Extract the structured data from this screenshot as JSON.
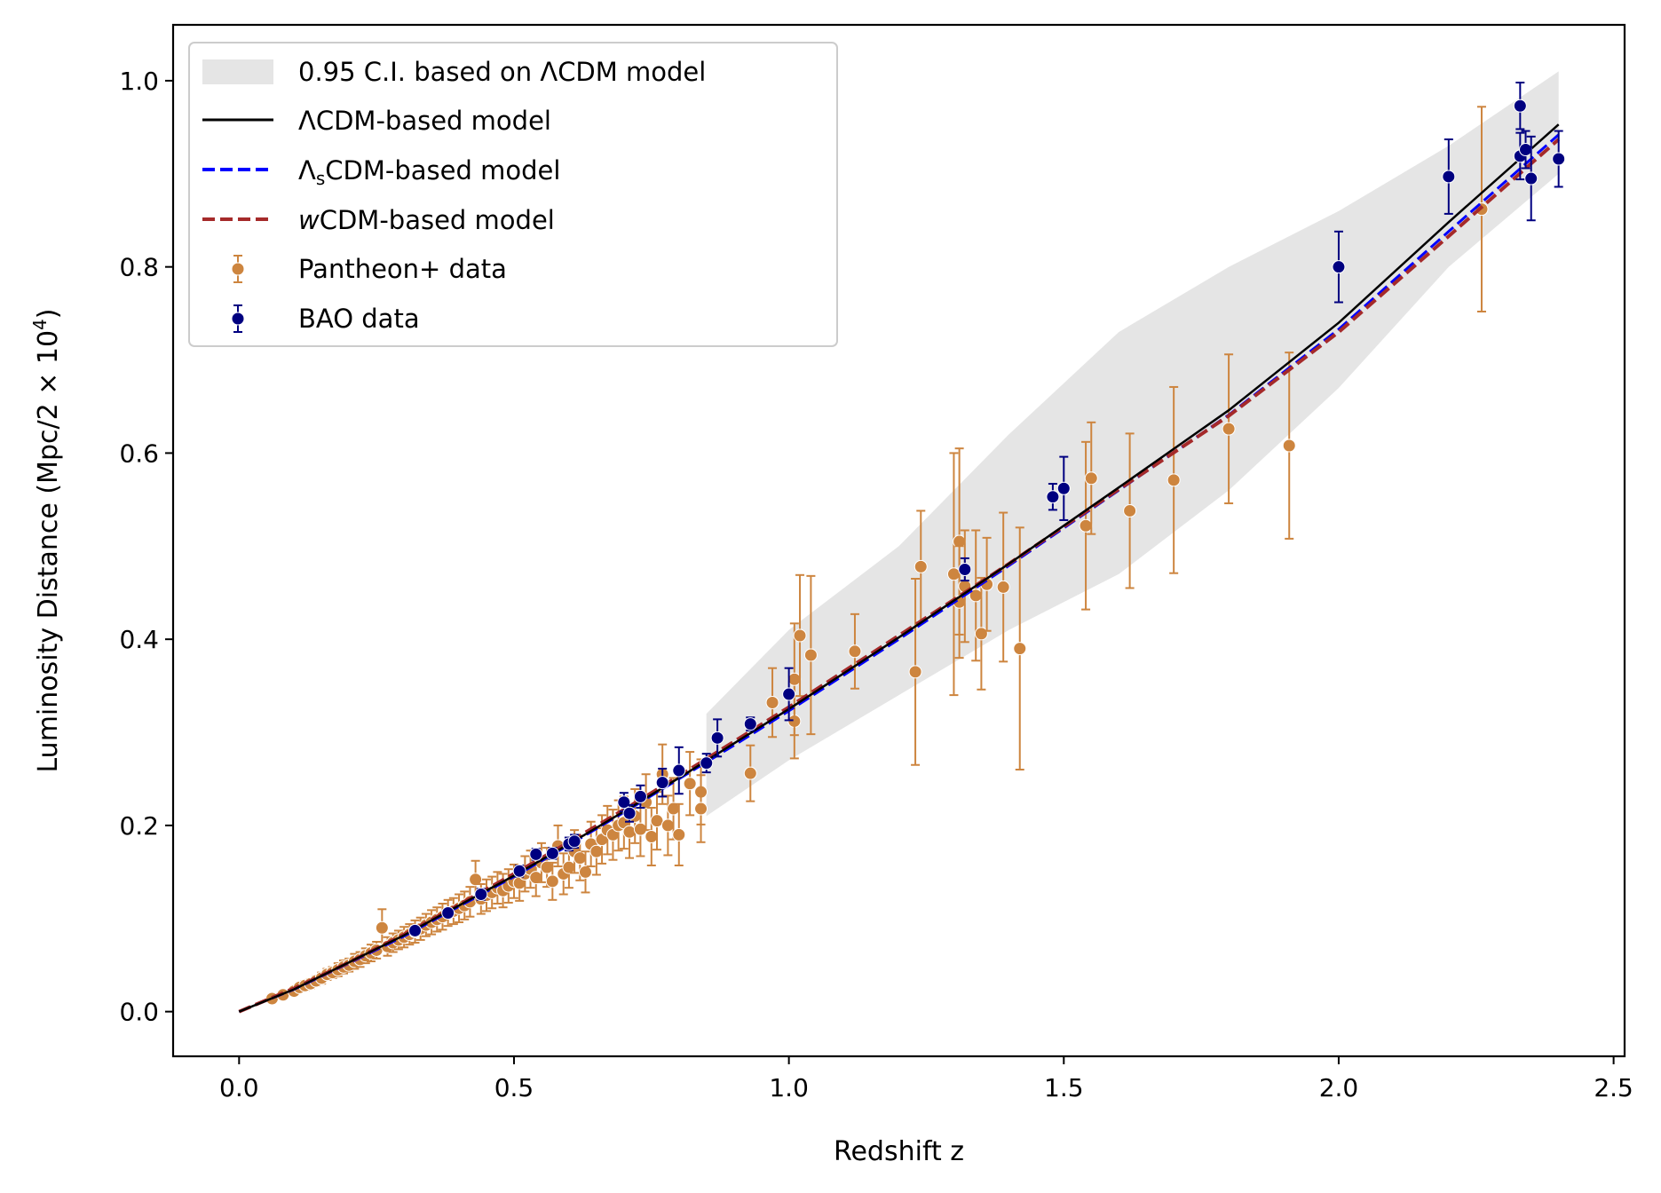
{
  "chart_data": {
    "type": "scatter",
    "xlabel": "Redshift z",
    "ylabel_main": "Luminosity Distance (Mpc/2 × 10",
    "ylabel_sup": "4",
    "ylabel_end": ")",
    "xlim": [
      -0.12,
      2.52
    ],
    "ylim": [
      -0.048,
      1.06
    ],
    "xticks": [
      0.0,
      0.5,
      1.0,
      1.5,
      2.0,
      2.5
    ],
    "xtick_labels": [
      "0.0",
      "0.5",
      "1.0",
      "1.5",
      "2.0",
      "2.5"
    ],
    "yticks": [
      0.0,
      0.2,
      0.4,
      0.6,
      0.8,
      1.0
    ],
    "ytick_labels": [
      "0.0",
      "0.2",
      "0.4",
      "0.6",
      "0.8",
      "1.0"
    ],
    "colors": {
      "ci_band": "#e5e5e5",
      "lcdm": "#000000",
      "lscdm": "#0000ff",
      "wcdm": "#a52a2a",
      "pantheon": "#cd853f",
      "bao": "#000080"
    },
    "legend": {
      "placement": "upper-left",
      "entries": [
        {
          "id": "ci",
          "pre": "0.95 C.I. based on ",
          "sym": "Λ",
          "post": "CDM model"
        },
        {
          "id": "lcdm",
          "pre": "",
          "sym": "Λ",
          "post": "CDM-based model"
        },
        {
          "id": "lscdm",
          "pre": "",
          "sym": "Λ",
          "sub": "s",
          "post": "CDM-based model"
        },
        {
          "id": "wcdm",
          "pre": "",
          "sym": "w",
          "post": "CDM-based model"
        },
        {
          "id": "pantheon",
          "pre": "Pantheon+ data"
        },
        {
          "id": "bao",
          "pre": "BAO data"
        }
      ]
    },
    "ci_band": {
      "x": [
        0.85,
        1.0,
        1.2,
        1.4,
        1.6,
        1.8,
        2.0,
        2.2,
        2.4
      ],
      "lower": [
        0.21,
        0.27,
        0.34,
        0.41,
        0.47,
        0.56,
        0.67,
        0.8,
        0.9
      ],
      "upper": [
        0.32,
        0.41,
        0.5,
        0.62,
        0.73,
        0.8,
        0.86,
        0.93,
        1.01
      ]
    },
    "models": {
      "lcdm": {
        "x": [
          0.0,
          0.1,
          0.2,
          0.3,
          0.4,
          0.5,
          0.6,
          0.7,
          0.8,
          0.9,
          1.0,
          1.2,
          1.4,
          1.6,
          1.8,
          2.0,
          2.2,
          2.4
        ],
        "y": [
          0.0,
          0.024,
          0.053,
          0.082,
          0.114,
          0.146,
          0.18,
          0.215,
          0.251,
          0.288,
          0.325,
          0.402,
          0.481,
          0.563,
          0.646,
          0.74,
          0.848,
          0.953
        ]
      },
      "lscdm": {
        "x": [
          0.0,
          0.1,
          0.2,
          0.3,
          0.4,
          0.5,
          0.6,
          0.7,
          0.8,
          0.9,
          1.0,
          1.2,
          1.4,
          1.6,
          1.8,
          2.0,
          2.2,
          2.4
        ],
        "y": [
          0.0,
          0.024,
          0.052,
          0.081,
          0.113,
          0.145,
          0.179,
          0.214,
          0.25,
          0.286,
          0.323,
          0.4,
          0.479,
          0.56,
          0.641,
          0.733,
          0.838,
          0.942
        ]
      },
      "wcdm": {
        "x": [
          0.0,
          0.1,
          0.2,
          0.3,
          0.4,
          0.5,
          0.6,
          0.7,
          0.8,
          0.9,
          1.0,
          1.2,
          1.4,
          1.6,
          1.8,
          2.0,
          2.2,
          2.4
        ],
        "y": [
          0.0,
          0.025,
          0.053,
          0.083,
          0.115,
          0.148,
          0.182,
          0.217,
          0.253,
          0.29,
          0.327,
          0.404,
          0.481,
          0.561,
          0.64,
          0.73,
          0.833,
          0.937
        ]
      }
    },
    "series": [
      {
        "name": "Pantheon+ data",
        "points": [
          [
            0.06,
            0.014,
            0.003
          ],
          [
            0.08,
            0.018,
            0.004
          ],
          [
            0.1,
            0.022,
            0.004
          ],
          [
            0.11,
            0.026,
            0.004
          ],
          [
            0.12,
            0.028,
            0.005
          ],
          [
            0.13,
            0.03,
            0.005
          ],
          [
            0.14,
            0.033,
            0.005
          ],
          [
            0.15,
            0.036,
            0.006
          ],
          [
            0.16,
            0.04,
            0.006
          ],
          [
            0.17,
            0.042,
            0.006
          ],
          [
            0.18,
            0.045,
            0.007
          ],
          [
            0.19,
            0.048,
            0.007
          ],
          [
            0.2,
            0.05,
            0.007
          ],
          [
            0.21,
            0.054,
            0.008
          ],
          [
            0.22,
            0.056,
            0.008
          ],
          [
            0.23,
            0.06,
            0.008
          ],
          [
            0.24,
            0.063,
            0.009
          ],
          [
            0.25,
            0.066,
            0.009
          ],
          [
            0.26,
            0.09,
            0.02
          ],
          [
            0.27,
            0.07,
            0.01
          ],
          [
            0.28,
            0.074,
            0.01
          ],
          [
            0.29,
            0.077,
            0.01
          ],
          [
            0.3,
            0.08,
            0.011
          ],
          [
            0.31,
            0.083,
            0.011
          ],
          [
            0.32,
            0.086,
            0.012
          ],
          [
            0.33,
            0.089,
            0.012
          ],
          [
            0.34,
            0.093,
            0.012
          ],
          [
            0.35,
            0.096,
            0.013
          ],
          [
            0.36,
            0.099,
            0.013
          ],
          [
            0.37,
            0.102,
            0.014
          ],
          [
            0.38,
            0.106,
            0.014
          ],
          [
            0.39,
            0.108,
            0.014
          ],
          [
            0.4,
            0.111,
            0.015
          ],
          [
            0.41,
            0.114,
            0.015
          ],
          [
            0.42,
            0.118,
            0.016
          ],
          [
            0.43,
            0.142,
            0.02
          ],
          [
            0.44,
            0.121,
            0.016
          ],
          [
            0.45,
            0.125,
            0.017
          ],
          [
            0.46,
            0.128,
            0.017
          ],
          [
            0.47,
            0.133,
            0.017
          ],
          [
            0.48,
            0.13,
            0.018
          ],
          [
            0.49,
            0.135,
            0.018
          ],
          [
            0.5,
            0.14,
            0.018
          ],
          [
            0.51,
            0.138,
            0.019
          ],
          [
            0.52,
            0.148,
            0.019
          ],
          [
            0.53,
            0.153,
            0.02
          ],
          [
            0.54,
            0.144,
            0.02
          ],
          [
            0.55,
            0.16,
            0.021
          ],
          [
            0.56,
            0.155,
            0.021
          ],
          [
            0.57,
            0.14,
            0.02
          ],
          [
            0.58,
            0.178,
            0.022
          ],
          [
            0.59,
            0.148,
            0.022
          ],
          [
            0.6,
            0.155,
            0.022
          ],
          [
            0.61,
            0.172,
            0.023
          ],
          [
            0.62,
            0.165,
            0.024
          ],
          [
            0.63,
            0.15,
            0.022
          ],
          [
            0.64,
            0.18,
            0.024
          ],
          [
            0.65,
            0.172,
            0.025
          ],
          [
            0.66,
            0.185,
            0.026
          ],
          [
            0.67,
            0.195,
            0.026
          ],
          [
            0.68,
            0.19,
            0.027
          ],
          [
            0.69,
            0.2,
            0.027
          ],
          [
            0.7,
            0.203,
            0.028
          ],
          [
            0.71,
            0.193,
            0.028
          ],
          [
            0.72,
            0.21,
            0.029
          ],
          [
            0.73,
            0.196,
            0.029
          ],
          [
            0.74,
            0.225,
            0.03
          ],
          [
            0.75,
            0.188,
            0.031
          ],
          [
            0.76,
            0.205,
            0.031
          ],
          [
            0.77,
            0.255,
            0.032
          ],
          [
            0.78,
            0.2,
            0.032
          ],
          [
            0.79,
            0.218,
            0.033
          ],
          [
            0.8,
            0.19,
            0.033
          ],
          [
            0.82,
            0.245,
            0.034
          ],
          [
            0.84,
            0.236,
            0.035
          ],
          [
            0.84,
            0.218,
            0.036
          ],
          [
            0.93,
            0.256,
            0.03
          ],
          [
            0.97,
            0.332,
            0.037
          ],
          [
            1.01,
            0.312,
            0.04
          ],
          [
            1.01,
            0.357,
            0.06
          ],
          [
            1.02,
            0.404,
            0.065
          ],
          [
            1.04,
            0.383,
            0.085
          ],
          [
            1.12,
            0.387,
            0.04
          ],
          [
            1.23,
            0.365,
            0.1
          ],
          [
            1.24,
            0.478,
            0.06
          ],
          [
            1.3,
            0.47,
            0.13
          ],
          [
            1.31,
            0.505,
            0.1
          ],
          [
            1.31,
            0.44,
            0.06
          ],
          [
            1.32,
            0.457,
            0.06
          ],
          [
            1.34,
            0.447,
            0.07
          ],
          [
            1.35,
            0.406,
            0.06
          ],
          [
            1.36,
            0.459,
            0.05
          ],
          [
            1.39,
            0.456,
            0.08
          ],
          [
            1.42,
            0.39,
            0.13
          ],
          [
            1.54,
            0.522,
            0.09
          ],
          [
            1.55,
            0.573,
            0.06
          ],
          [
            1.62,
            0.538,
            0.083
          ],
          [
            1.7,
            0.571,
            0.1
          ],
          [
            1.8,
            0.626,
            0.08
          ],
          [
            1.91,
            0.608,
            0.1
          ],
          [
            2.26,
            0.862,
            0.11
          ]
        ]
      },
      {
        "name": "BAO data",
        "points": [
          [
            0.32,
            0.087,
            0.004
          ],
          [
            0.38,
            0.106,
            0.004
          ],
          [
            0.44,
            0.126,
            0.006
          ],
          [
            0.51,
            0.151,
            0.006
          ],
          [
            0.54,
            0.169,
            0.006
          ],
          [
            0.57,
            0.17,
            0.006
          ],
          [
            0.6,
            0.18,
            0.007
          ],
          [
            0.61,
            0.183,
            0.007
          ],
          [
            0.7,
            0.225,
            0.01
          ],
          [
            0.71,
            0.213,
            0.009
          ],
          [
            0.73,
            0.231,
            0.012
          ],
          [
            0.77,
            0.246,
            0.015
          ],
          [
            0.8,
            0.259,
            0.025
          ],
          [
            0.85,
            0.267,
            0.01
          ],
          [
            0.87,
            0.294,
            0.02
          ],
          [
            0.93,
            0.309,
            0.007
          ],
          [
            1.0,
            0.341,
            0.028
          ],
          [
            1.32,
            0.475,
            0.012
          ],
          [
            1.48,
            0.553,
            0.014
          ],
          [
            1.5,
            0.562,
            0.034
          ],
          [
            2.0,
            0.8,
            0.038
          ],
          [
            2.2,
            0.897,
            0.04
          ],
          [
            2.33,
            0.973,
            0.025
          ],
          [
            2.33,
            0.919,
            0.025
          ],
          [
            2.34,
            0.926,
            0.02
          ],
          [
            2.35,
            0.895,
            0.045
          ],
          [
            2.4,
            0.916,
            0.03
          ]
        ]
      }
    ]
  }
}
